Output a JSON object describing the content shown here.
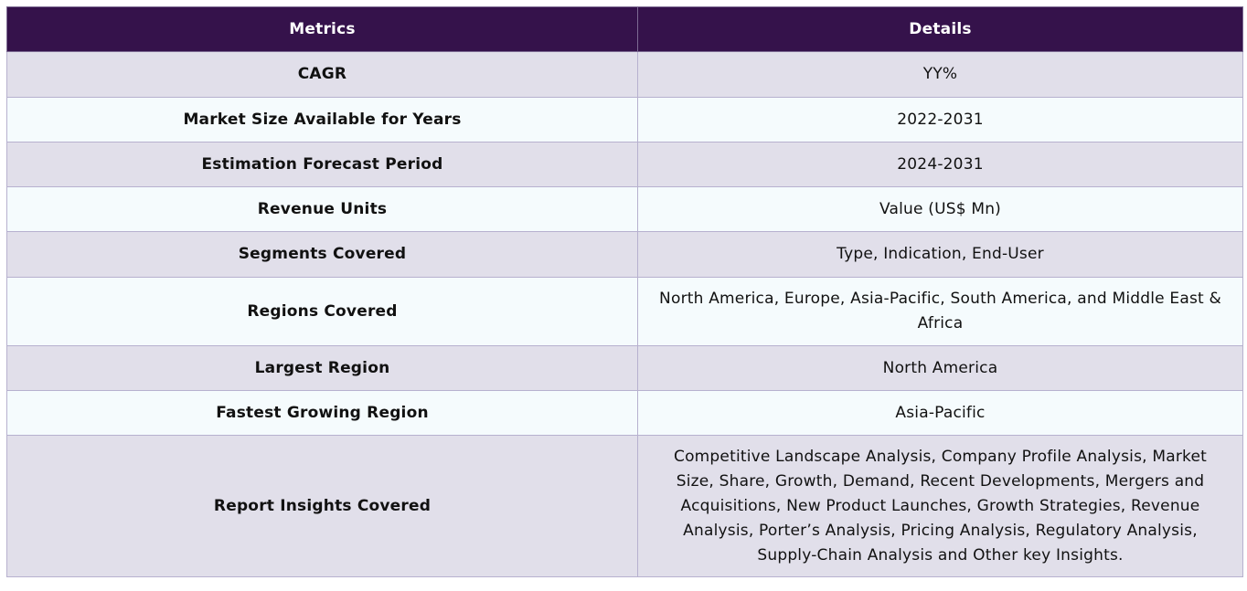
{
  "table": {
    "headers": {
      "metrics": "Metrics",
      "details": "Details"
    },
    "rows": [
      {
        "metric": "CAGR",
        "detail": "YY%"
      },
      {
        "metric": "Market Size Available for Years",
        "detail": "2022-2031"
      },
      {
        "metric": "Estimation Forecast Period",
        "detail": "2024-2031"
      },
      {
        "metric": "Revenue Units",
        "detail": "Value (US$ Mn)"
      },
      {
        "metric": "Segments Covered",
        "detail": "Type, Indication, End-User"
      },
      {
        "metric": "Regions Covered",
        "detail": "North America, Europe, Asia-Pacific, South America, and Middle East & Africa"
      },
      {
        "metric": "Largest Region",
        "detail": "North America"
      },
      {
        "metric": "Fastest Growing Region",
        "detail": "Asia-Pacific"
      },
      {
        "metric": "Report Insights Covered",
        "detail": "Competitive Landscape Analysis, Company Profile Analysis, Market Size, Share, Growth, Demand, Recent Developments, Mergers and Acquisitions, New Product Launches, Growth Strategies, Revenue Analysis, Porter’s Analysis, Pricing Analysis, Regulatory Analysis, Supply-Chain Analysis and Other key Insights."
      }
    ]
  },
  "colors": {
    "header_bg": "#35124b",
    "row_odd_bg": "#e1dfea",
    "row_even_bg": "#f5fbfd",
    "border": "#b7b1cf"
  }
}
